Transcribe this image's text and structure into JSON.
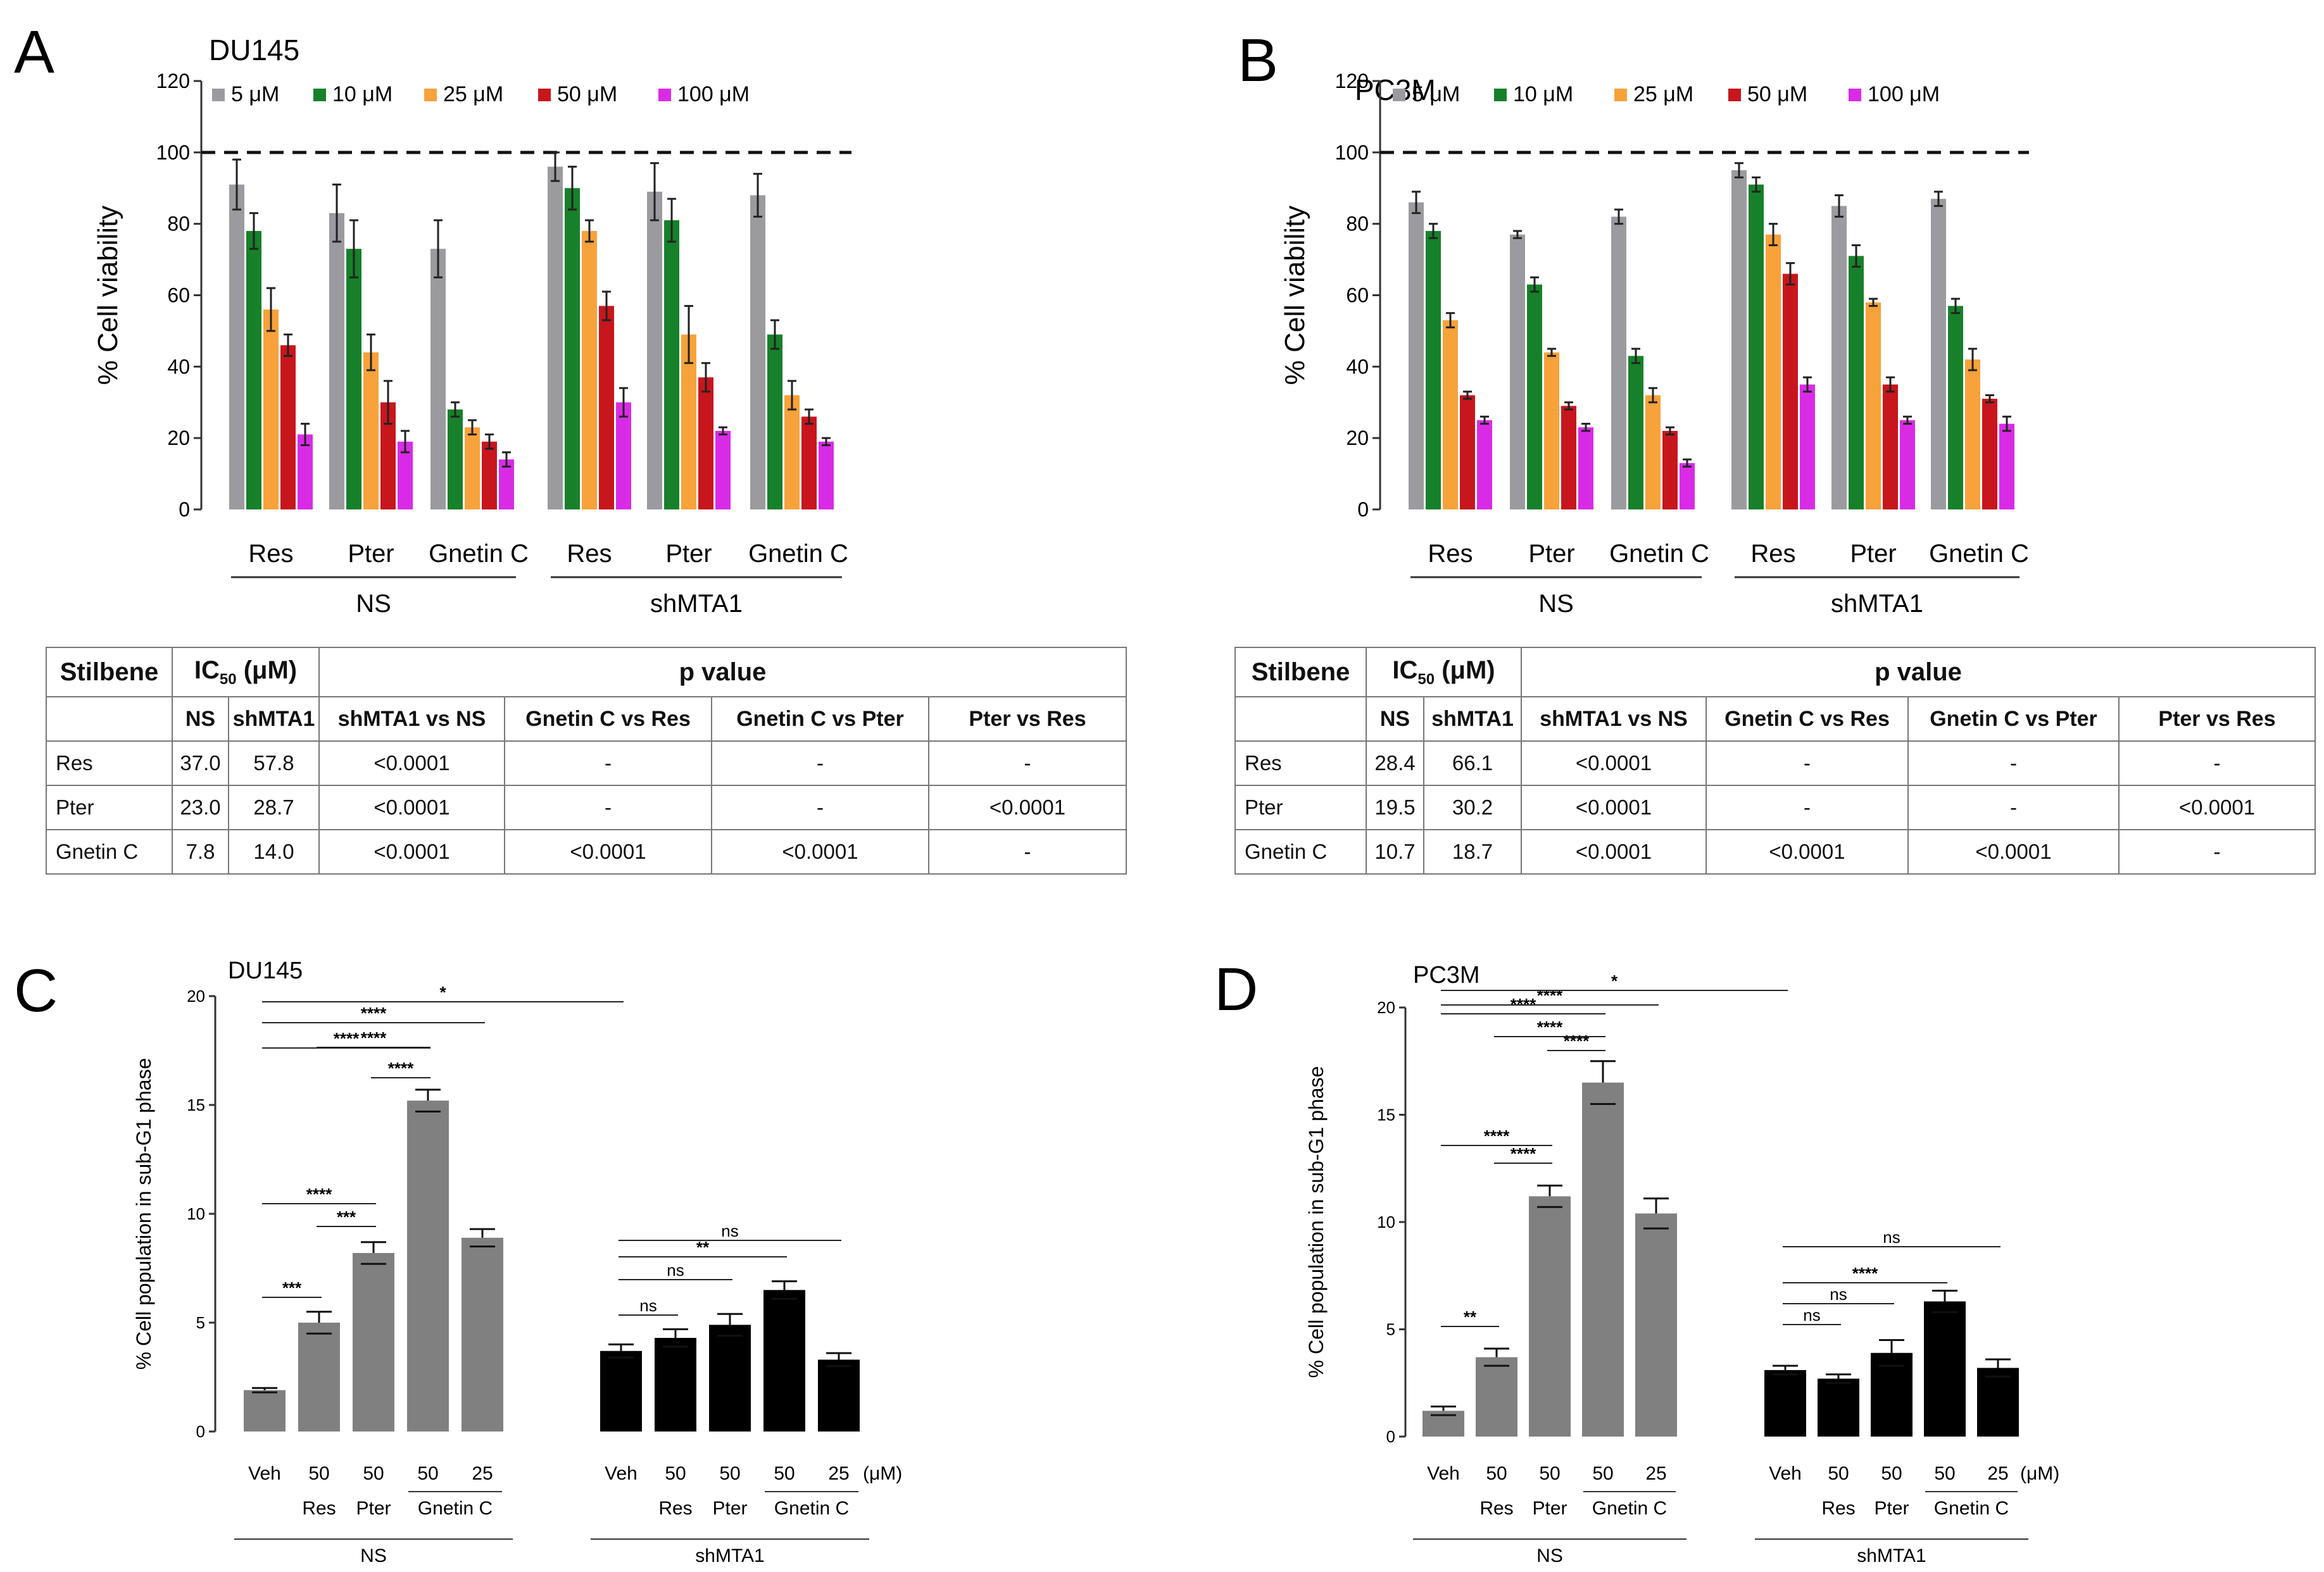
{
  "colors": {
    "c5": "#9b9b9f",
    "c10": "#17802a",
    "c25": "#f7a23a",
    "c50": "#c8161d",
    "c100": "#d92be6",
    "grey": "#808080",
    "black": "#000000"
  },
  "panels": {
    "A": {
      "letter": "A",
      "title": "DU145",
      "ylabel": "% Cell viability"
    },
    "B": {
      "letter": "B",
      "title": "PC3M",
      "ylabel": "% Cell viability"
    },
    "C": {
      "letter": "C",
      "title": "DU145",
      "ylabel": "% Cell population in sub-G1 phase"
    },
    "D": {
      "letter": "D",
      "title": "PC3M",
      "ylabel": "% Cell population in sub-G1 phase"
    }
  },
  "chart_data": [
    {
      "id": "A",
      "type": "bar",
      "title": "DU145",
      "xlabel": "",
      "ylabel": "% Cell viability",
      "ylim": [
        0,
        120
      ],
      "yticks": [
        0,
        20,
        40,
        60,
        80,
        100,
        120
      ],
      "reference_line": 100,
      "legend": [
        "5 μM",
        "10 μM",
        "25 μM",
        "50 μM",
        "100 μM"
      ],
      "categories": [
        "Res",
        "Pter",
        "Gnetin C",
        "Res",
        "Pter",
        "Gnetin C"
      ],
      "groups": [
        "NS",
        "shMTA1"
      ],
      "series": [
        {
          "name": "5 μM",
          "values": [
            91,
            83,
            73,
            96,
            89,
            88
          ],
          "errors": [
            7,
            8,
            8,
            4,
            8,
            6
          ]
        },
        {
          "name": "10 μM",
          "values": [
            78,
            73,
            28,
            90,
            81,
            49
          ],
          "errors": [
            5,
            8,
            2,
            6,
            6,
            4
          ]
        },
        {
          "name": "25 μM",
          "values": [
            56,
            44,
            23,
            78,
            49,
            32
          ],
          "errors": [
            6,
            5,
            2,
            3,
            8,
            4
          ]
        },
        {
          "name": "50 μM",
          "values": [
            46,
            30,
            19,
            57,
            37,
            26
          ],
          "errors": [
            3,
            6,
            2,
            4,
            4,
            2
          ]
        },
        {
          "name": "100 μM",
          "values": [
            21,
            19,
            14,
            30,
            22,
            19
          ],
          "errors": [
            3,
            3,
            2,
            4,
            1,
            1
          ]
        }
      ]
    },
    {
      "id": "B",
      "type": "bar",
      "title": "PC3M",
      "xlabel": "",
      "ylabel": "% Cell viability",
      "ylim": [
        0,
        120
      ],
      "yticks": [
        0,
        20,
        40,
        60,
        80,
        100,
        120
      ],
      "reference_line": 100,
      "legend": [
        "5 μM",
        "10 μM",
        "25 μM",
        "50 μM",
        "100 μM"
      ],
      "categories": [
        "Res",
        "Pter",
        "Gnetin C",
        "Res",
        "Pter",
        "Gnetin C"
      ],
      "groups": [
        "NS",
        "shMTA1"
      ],
      "series": [
        {
          "name": "5 μM",
          "values": [
            86,
            77,
            82,
            95,
            85,
            87
          ],
          "errors": [
            3,
            1,
            2,
            2,
            3,
            2
          ]
        },
        {
          "name": "10 μM",
          "values": [
            78,
            63,
            43,
            91,
            71,
            57
          ],
          "errors": [
            2,
            2,
            2,
            2,
            3,
            2
          ]
        },
        {
          "name": "25 μM",
          "values": [
            53,
            44,
            32,
            77,
            58,
            42
          ],
          "errors": [
            2,
            1,
            2,
            3,
            1,
            3
          ]
        },
        {
          "name": "50 μM",
          "values": [
            32,
            29,
            22,
            66,
            35,
            31
          ],
          "errors": [
            1,
            1,
            1,
            3,
            2,
            1
          ]
        },
        {
          "name": "100 μM",
          "values": [
            25,
            23,
            13,
            35,
            25,
            24
          ],
          "errors": [
            1,
            1,
            1,
            2,
            1,
            2
          ]
        }
      ]
    },
    {
      "id": "C",
      "type": "bar",
      "title": "DU145",
      "xlabel": "",
      "ylabel": "% Cell population in sub-G1 phase",
      "ylim": [
        0,
        20
      ],
      "yticks": [
        0,
        5,
        10,
        15,
        20
      ],
      "doses": [
        "Veh",
        "50",
        "50",
        "50",
        "25"
      ],
      "unit": "(μM)",
      "compounds": [
        "",
        "Res",
        "Pter",
        "Gnetin C"
      ],
      "groups": [
        "NS",
        "shMTA1"
      ],
      "series": [
        {
          "name": "NS",
          "values": [
            1.9,
            5.0,
            8.2,
            15.2,
            8.9
          ],
          "errors": [
            0.1,
            0.5,
            0.5,
            0.5,
            0.4
          ]
        },
        {
          "name": "shMTA1",
          "values": [
            3.7,
            4.3,
            4.9,
            6.5,
            3.3
          ],
          "errors": [
            0.3,
            0.4,
            0.5,
            0.4,
            0.3
          ]
        }
      ],
      "significance": [
        {
          "from": 0,
          "to": 1,
          "label": "***"
        },
        {
          "from": 1,
          "to": 2,
          "label": "***"
        },
        {
          "from": 0,
          "to": 2,
          "label": "****"
        },
        {
          "from": 2,
          "to": 3,
          "label": "****"
        },
        {
          "from": 1,
          "to": 3,
          "label": "****"
        },
        {
          "from": 0,
          "to": 3,
          "label": "****"
        },
        {
          "from": 0,
          "to": 4,
          "label": "****"
        },
        {
          "from": 0,
          "to": 5,
          "label": "*"
        },
        {
          "from": 5,
          "to": 6,
          "label": "ns"
        },
        {
          "from": 5,
          "to": 7,
          "label": "ns"
        },
        {
          "from": 5,
          "to": 8,
          "label": "**"
        },
        {
          "from": 5,
          "to": 9,
          "label": "ns"
        }
      ]
    },
    {
      "id": "D",
      "type": "bar",
      "title": "PC3M",
      "xlabel": "",
      "ylabel": "% Cell population in sub-G1 phase",
      "ylim": [
        0,
        20
      ],
      "yticks": [
        0,
        5,
        10,
        15,
        20
      ],
      "doses": [
        "Veh",
        "50",
        "50",
        "50",
        "25"
      ],
      "unit": "(μM)",
      "compounds": [
        "",
        "Res",
        "Pter",
        "Gnetin C"
      ],
      "groups": [
        "NS",
        "shMTA1"
      ],
      "series": [
        {
          "name": "NS",
          "values": [
            1.2,
            3.7,
            11.2,
            16.5,
            10.4
          ],
          "errors": [
            0.2,
            0.4,
            0.5,
            1.0,
            0.7
          ]
        },
        {
          "name": "shMTA1",
          "values": [
            3.1,
            2.7,
            3.9,
            6.3,
            3.2
          ],
          "errors": [
            0.2,
            0.2,
            0.6,
            0.5,
            0.4
          ]
        }
      ],
      "significance": [
        {
          "from": 0,
          "to": 1,
          "label": "**"
        },
        {
          "from": 1,
          "to": 2,
          "label": "****"
        },
        {
          "from": 0,
          "to": 2,
          "label": "****"
        },
        {
          "from": 2,
          "to": 3,
          "label": "****"
        },
        {
          "from": 1,
          "to": 3,
          "label": "****"
        },
        {
          "from": 0,
          "to": 3,
          "label": "****"
        },
        {
          "from": 0,
          "to": 4,
          "label": "****"
        },
        {
          "from": 0,
          "to": 5,
          "label": "*"
        },
        {
          "from": 5,
          "to": 6,
          "label": "ns"
        },
        {
          "from": 5,
          "to": 7,
          "label": "ns"
        },
        {
          "from": 5,
          "to": 8,
          "label": "****"
        },
        {
          "from": 5,
          "to": 9,
          "label": "ns"
        }
      ]
    }
  ],
  "tables": {
    "A": {
      "headers": {
        "stilbene": "Stilbene",
        "ic50": "IC",
        "ic50_sub": "50",
        "ic50_unit": " (μM)",
        "pvalue": "p value"
      },
      "subheaders": [
        "NS",
        "shMTA1",
        "shMTA1 vs NS",
        "Gnetin C vs Res",
        "Gnetin C vs Pter",
        "Pter vs Res"
      ],
      "rows": [
        [
          "Res",
          "37.0",
          "57.8",
          "<0.0001",
          "-",
          "-",
          "-"
        ],
        [
          "Pter",
          "23.0",
          "28.7",
          "<0.0001",
          "-",
          "-",
          "<0.0001"
        ],
        [
          "Gnetin C",
          "7.8",
          "14.0",
          "<0.0001",
          "<0.0001",
          "<0.0001",
          "-"
        ]
      ]
    },
    "B": {
      "headers": {
        "stilbene": "Stilbene",
        "ic50": "IC",
        "ic50_sub": "50",
        "ic50_unit": " (μM)",
        "pvalue": "p value"
      },
      "subheaders": [
        "NS",
        "shMTA1",
        "shMTA1 vs NS",
        "Gnetin C vs Res",
        "Gnetin C vs Pter",
        "Pter vs Res"
      ],
      "rows": [
        [
          "Res",
          "28.4",
          "66.1",
          "<0.0001",
          "-",
          "-",
          "-"
        ],
        [
          "Pter",
          "19.5",
          "30.2",
          "<0.0001",
          "-",
          "-",
          "<0.0001"
        ],
        [
          "Gnetin C",
          "10.7",
          "18.7",
          "<0.0001",
          "<0.0001",
          "<0.0001",
          "-"
        ]
      ]
    }
  }
}
